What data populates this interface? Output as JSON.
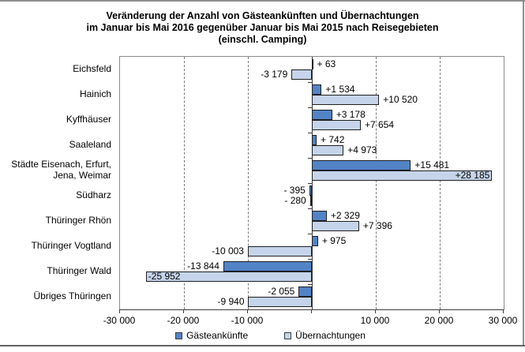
{
  "title": {
    "line1": "Veränderung der Anzahl von Gästeankünften und Übernachtungen",
    "line2": "im Januar bis Mai 2016 gegenüber Januar bis Mai 2015 nach Reisegebieten",
    "line3": "(einschl. Camping)"
  },
  "chart_data": {
    "type": "bar",
    "orientation": "horizontal",
    "title": "Veränderung der Anzahl von Gästeankünften und Übernachtungen im Januar bis Mai 2016 gegenüber Januar bis Mai 2015 nach Reisegebieten (einschl. Camping)",
    "categories": [
      "Eichsfeld",
      "Hainich",
      "Kyffhäuser",
      "Saaleland",
      "Städte Eisenach, Erfurt, Jena, Weimar",
      "Südharz",
      "Thüringer Rhön",
      "Thüringer Vogtland",
      "Thüringer Wald",
      "Übriges Thüringen"
    ],
    "series": [
      {
        "name": "Gästeankünfte",
        "color": "#5283C6",
        "values": [
          63,
          1534,
          3178,
          742,
          15481,
          -395,
          2329,
          975,
          -13844,
          -2055
        ],
        "labels": [
          "+ 63",
          "+1 534",
          "+3 178",
          "+ 742",
          "+15 481",
          "- 395",
          "+2 329",
          "+ 975",
          "-13 844",
          "-2 055"
        ],
        "label_inside": [
          false,
          false,
          false,
          false,
          false,
          false,
          false,
          false,
          false,
          false
        ]
      },
      {
        "name": "Übernachtungen",
        "color": "#C5D4EA",
        "values": [
          -3179,
          10520,
          7654,
          4973,
          28185,
          -280,
          7396,
          -10003,
          -25952,
          -9940
        ],
        "labels": [
          "-3 179",
          "+10 520",
          "+7 654",
          "+4 973",
          "+28 185",
          "- 280",
          "+7 396",
          "-10 003",
          "-25 952",
          "-9 940"
        ],
        "label_inside": [
          false,
          false,
          false,
          false,
          true,
          false,
          false,
          false,
          true,
          false
        ]
      }
    ],
    "xlim": [
      -30000,
      30000
    ],
    "xticks": [
      -30000,
      -20000,
      -10000,
      10000,
      20000,
      30000
    ],
    "xtick_labels": [
      "-30 000",
      "-20 000",
      "-10 000",
      "10 000",
      "20 000",
      "30 000"
    ],
    "grid": "vertical-dashed",
    "legend_position": "bottom"
  },
  "legend": {
    "items": [
      {
        "label": "Gästeankünfte",
        "color": "#5283C6"
      },
      {
        "label": "Übernachtungen",
        "color": "#C5D4EA"
      }
    ]
  }
}
